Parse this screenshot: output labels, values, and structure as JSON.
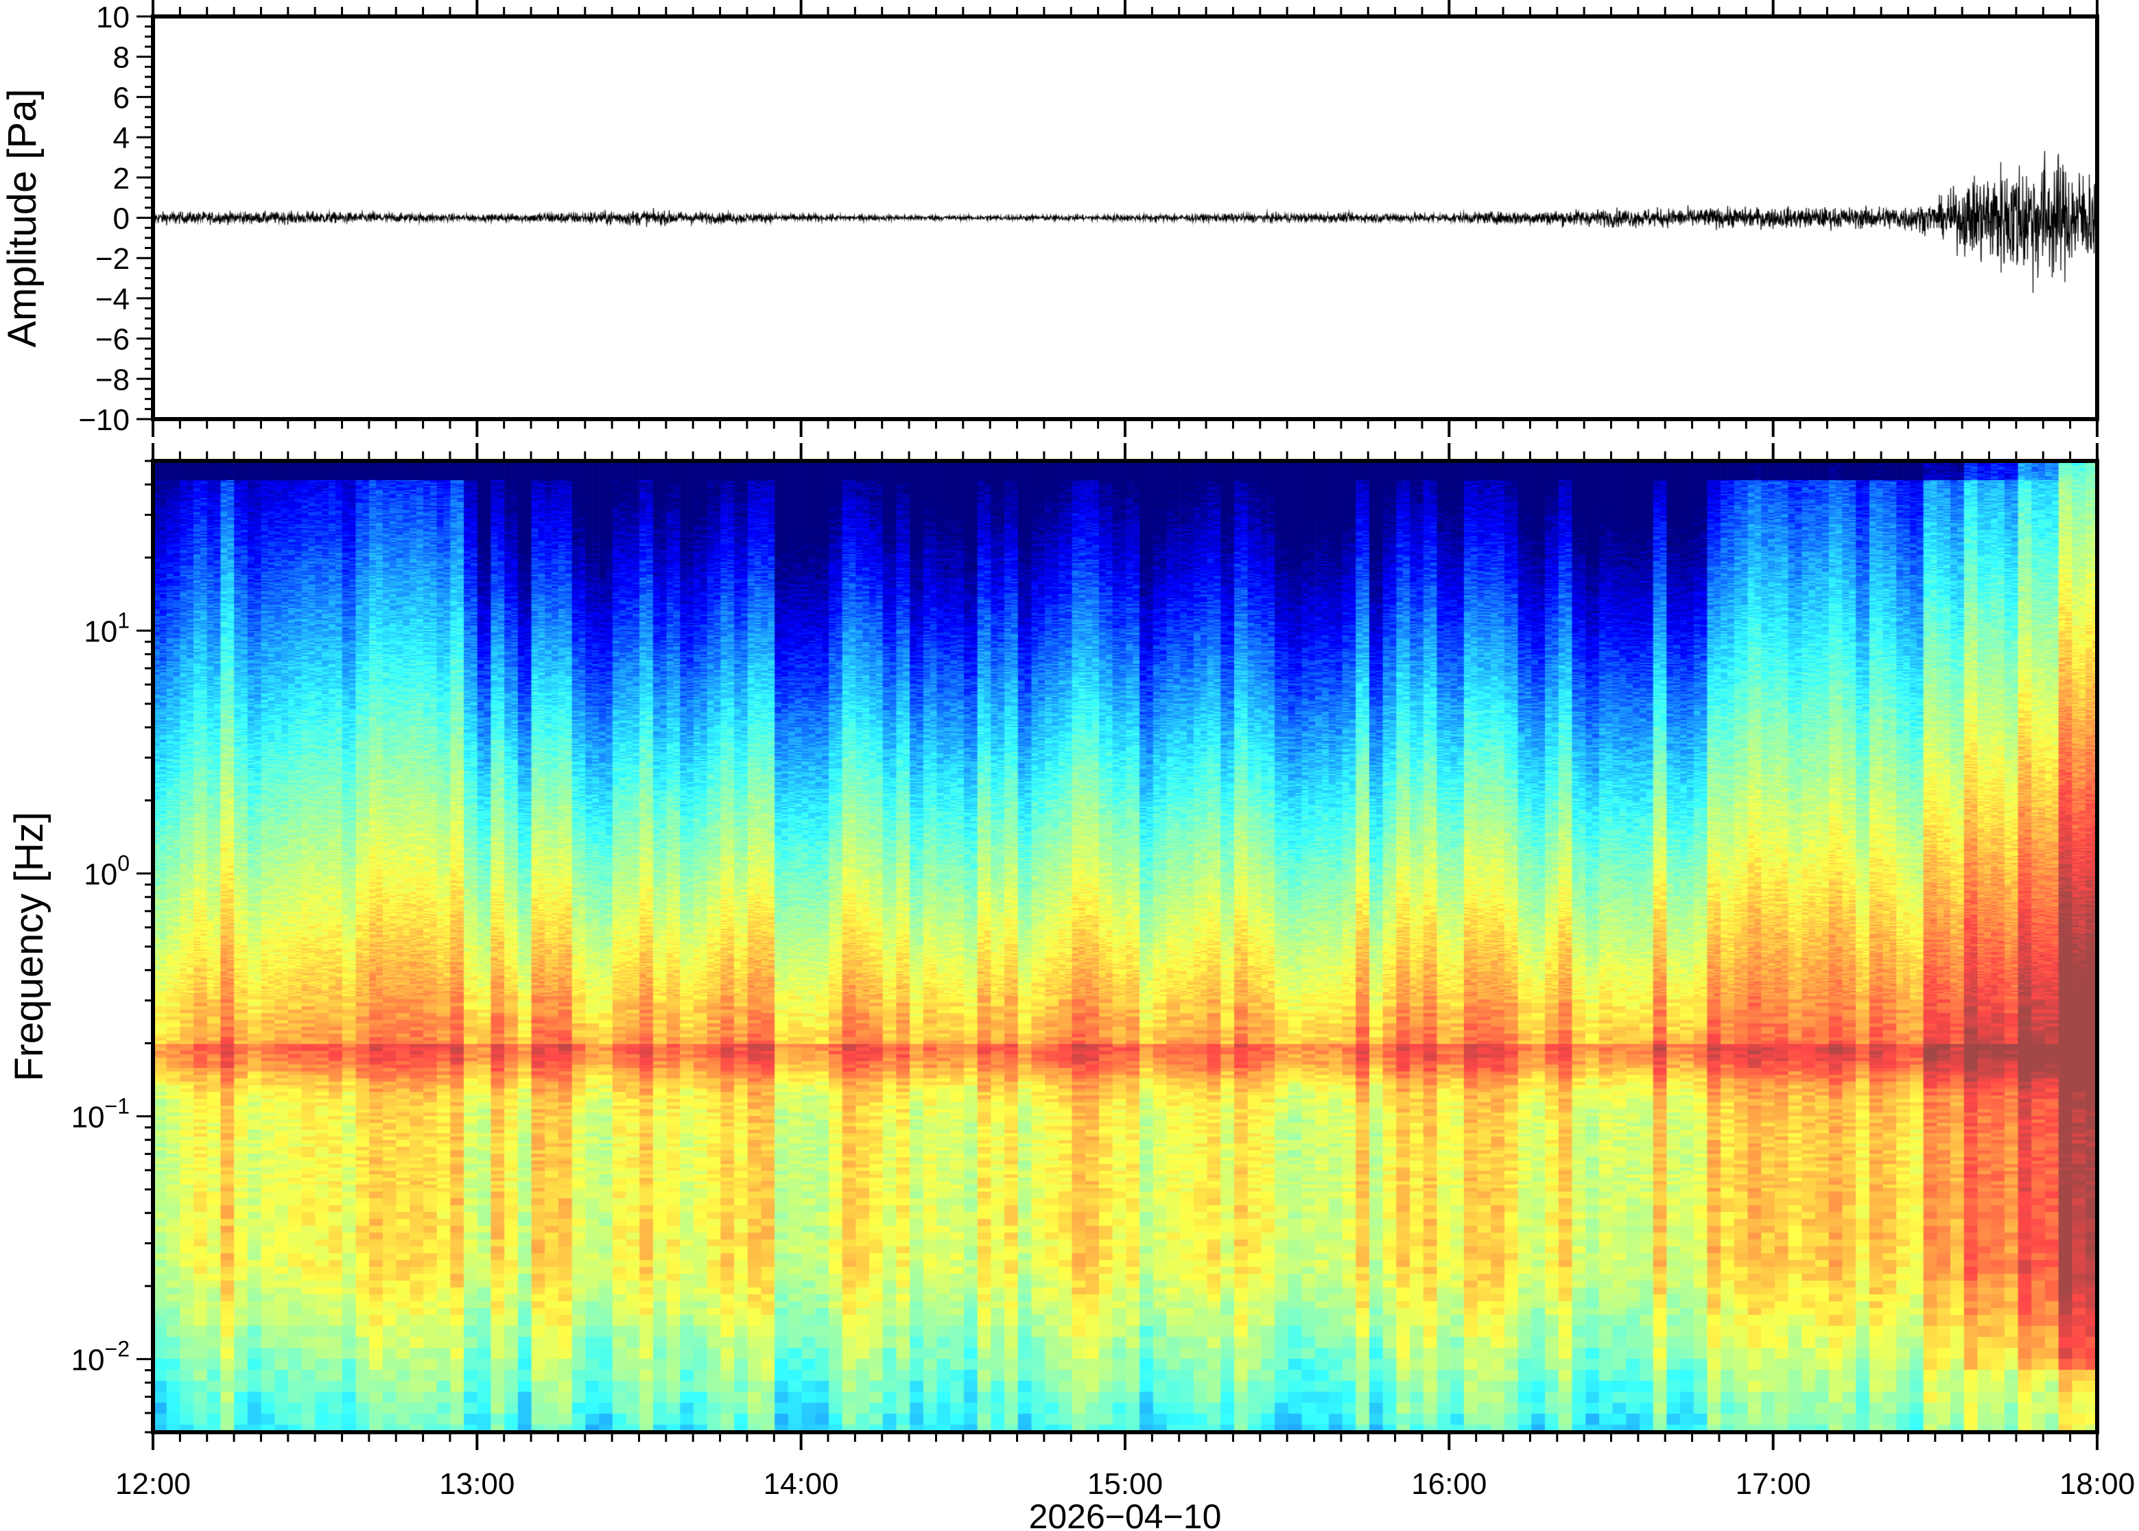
{
  "chart_data": [
    {
      "type": "line",
      "panel": "waveform",
      "ylabel": "Amplitude [Pa]",
      "ylim": [
        -10,
        10
      ],
      "yticks": [
        10,
        8,
        6,
        4,
        2,
        0,
        -2,
        -4,
        -6,
        -8,
        -10
      ],
      "ytick_labels": [
        "10",
        "8",
        "6",
        "4",
        "2",
        "0",
        "−2",
        "−4",
        "−6",
        "−8",
        "−10"
      ],
      "xlim": [
        "12:00",
        "18:00"
      ],
      "line_color": "#000000",
      "amplitude_envelope": {
        "times": [
          "12:00",
          "12:30",
          "13:00",
          "13:30",
          "14:00",
          "14:30",
          "15:00",
          "15:30",
          "16:00",
          "16:30",
          "17:00",
          "17:15",
          "17:30",
          "17:40",
          "17:50",
          "18:00"
        ],
        "peak_pa": [
          0.4,
          0.4,
          0.2,
          0.5,
          0.2,
          0.15,
          0.2,
          0.3,
          0.3,
          0.6,
          0.7,
          0.7,
          1.0,
          3.5,
          4.5,
          3.0
        ]
      }
    },
    {
      "type": "heatmap",
      "panel": "spectrogram",
      "ylabel": "Frequency [Hz]",
      "yscale": "log",
      "ylim": [
        0.005,
        50
      ],
      "yticks": [
        10,
        1,
        0.1,
        0.01
      ],
      "ytick_labels": [
        {
          "base": "10",
          "exp": "1"
        },
        {
          "base": "10",
          "exp": "0"
        },
        {
          "base": "10",
          "exp": "−1"
        },
        {
          "base": "10",
          "exp": "−2"
        }
      ],
      "xlim": [
        "12:00",
        "18:00"
      ],
      "xticks": [
        "12:00",
        "13:00",
        "14:00",
        "15:00",
        "16:00",
        "17:00",
        "18:00"
      ],
      "xlabel": "2026−04−10",
      "colormap": "jet",
      "colors": {
        "low": "#0a0a7a",
        "mid": "#70e0d8",
        "high": "#f05050"
      }
    }
  ]
}
